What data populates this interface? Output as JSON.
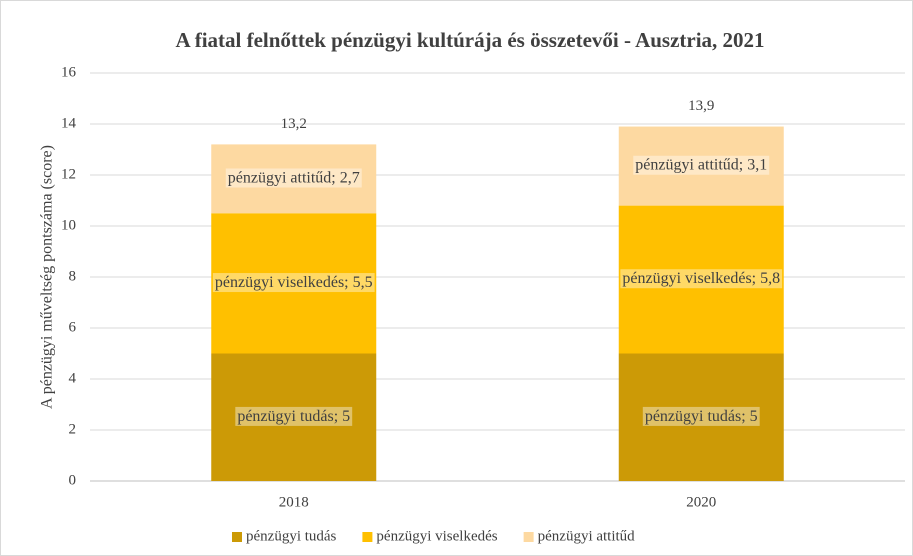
{
  "chart_data": {
    "type": "stacked-bar",
    "title": "A fiatal felnőttek pénzügyi kultúrája és összetevői - Ausztria, 2021",
    "y_label": "A pénzügyi műveltség pontszáma (score)",
    "categories": [
      "2018",
      "2020"
    ],
    "series": [
      {
        "name": "pénzügyi tudás",
        "color": "#cc9a06",
        "values": [
          5,
          5
        ],
        "value_labels": [
          "pénzügyi tudás; 5",
          "pénzügyi tudás; 5"
        ]
      },
      {
        "name": "pénzügyi viselkedés",
        "color": "#ffc000",
        "values": [
          5.5,
          5.8
        ],
        "value_labels": [
          "pénzügyi viselkedés; 5,5",
          "pénzügyi viselkedés; 5,8"
        ]
      },
      {
        "name": "pénzügyi attitűd",
        "color": "#fdd9a1",
        "values": [
          2.7,
          3.1
        ],
        "value_labels": [
          "pénzügyi attitűd; 2,7",
          "pénzügyi attitűd; 3,1"
        ]
      }
    ],
    "totals": [
      13.2,
      13.9
    ],
    "total_labels": [
      "13,2",
      "13,9"
    ],
    "ylim": [
      0,
      16
    ],
    "yticks": [
      0,
      2,
      4,
      6,
      8,
      10,
      12,
      14,
      16
    ],
    "grid": true,
    "legend": "bottom"
  }
}
